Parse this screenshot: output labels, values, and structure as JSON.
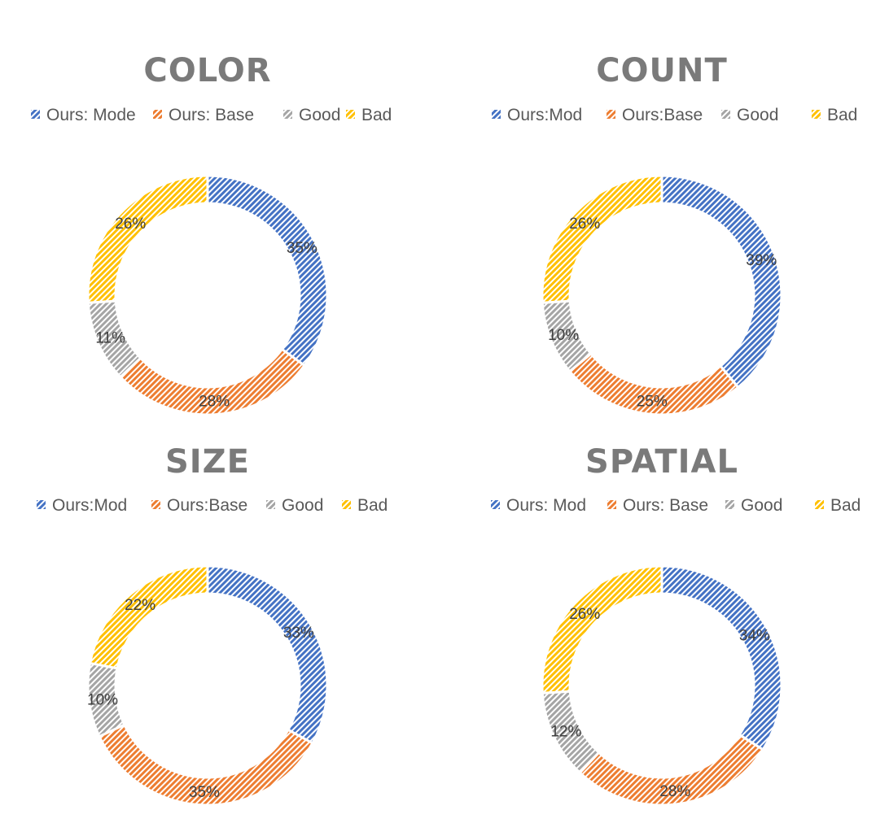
{
  "chart_data": [
    {
      "type": "pie",
      "title": "COLOR",
      "legend": [
        "Ours: Mode",
        "Ours: Base",
        "Good",
        "Bad"
      ],
      "legend_position": "top",
      "values": [
        35,
        28,
        11,
        26
      ],
      "labels": [
        "35%",
        "28%",
        "11%",
        "26%"
      ]
    },
    {
      "type": "pie",
      "title": "COUNT",
      "legend": [
        "Ours:Mod",
        "Ours:Base",
        "Good",
        "Bad"
      ],
      "legend_position": "top",
      "values": [
        39,
        25,
        10,
        26
      ],
      "labels": [
        "39%",
        "25%",
        "10%",
        "26%"
      ]
    },
    {
      "type": "pie",
      "title": "SIZE",
      "legend": [
        "Ours:Mod",
        "Ours:Base",
        "Good",
        "Bad"
      ],
      "legend_position": "top",
      "values": [
        33,
        35,
        10,
        22
      ],
      "labels": [
        "33%",
        "35%",
        "10%",
        "22%"
      ]
    },
    {
      "type": "pie",
      "title": "SPATIAL",
      "legend": [
        "Ours: Mod",
        "Ours: Base",
        "Good",
        "Bad"
      ],
      "legend_position": "top",
      "values": [
        34,
        28,
        12,
        26
      ],
      "labels": [
        "34%",
        "28%",
        "12%",
        "26%"
      ]
    }
  ],
  "colors": [
    "#4472c4",
    "#ed7d31",
    "#a5a5a5",
    "#ffc000"
  ]
}
